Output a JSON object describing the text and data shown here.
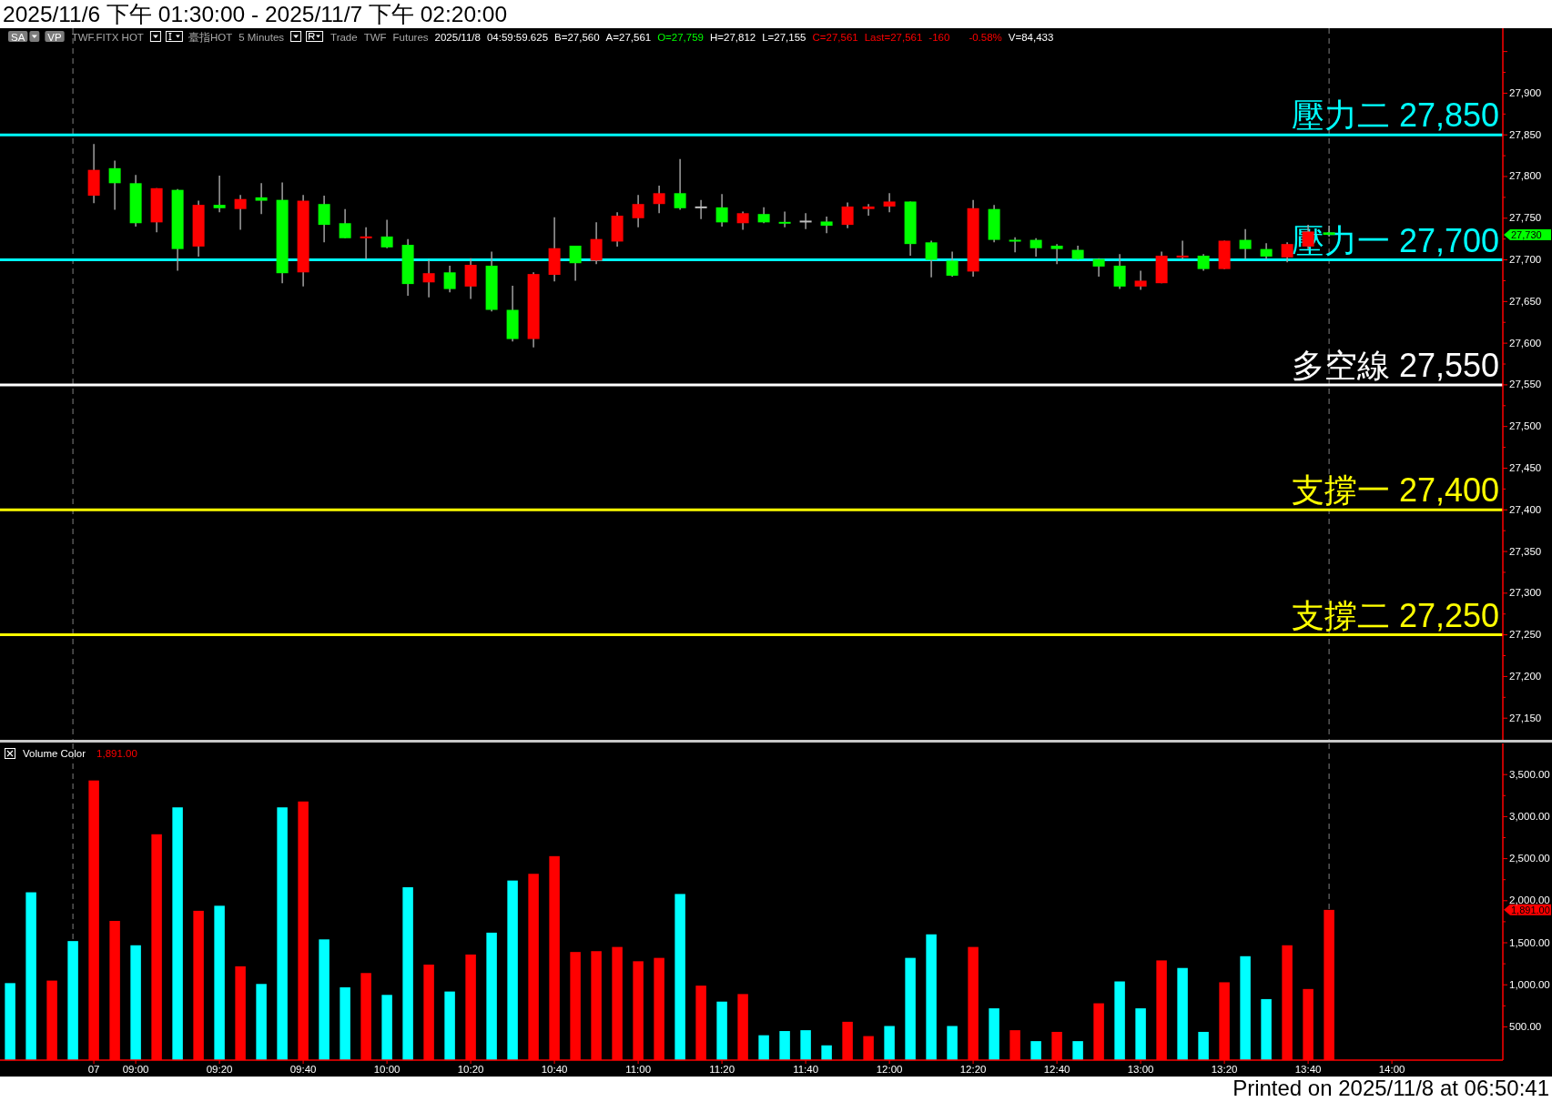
{
  "chart_data": [
    {
      "type": "candlestick",
      "title": "2025/11/6 下午 01:30:00 - 2025/11/7 下午 02:20:00",
      "categories": [
        null,
        null,
        null,
        null,
        null,
        null,
        null,
        null,
        null,
        null,
        null,
        null,
        null,
        null,
        null,
        null,
        null,
        null,
        null,
        null,
        null,
        null,
        null,
        null,
        null,
        null,
        null,
        null,
        null,
        null,
        null,
        null,
        null,
        null,
        null,
        null,
        null,
        null,
        null,
        null,
        null,
        null,
        null,
        null,
        null,
        null,
        null,
        null,
        null,
        null,
        null,
        null,
        null,
        null,
        null,
        null,
        null,
        null,
        null,
        null,
        null,
        null,
        null,
        null,
        null,
        null,
        null,
        null,
        null,
        null,
        null
      ],
      "ohlc": [
        null,
        null,
        null,
        null,
        [
          27777,
          27839,
          27768,
          27808
        ],
        [
          27810,
          27819,
          27760,
          27792
        ],
        [
          27792,
          27802,
          27740,
          27744
        ],
        [
          27745,
          27786,
          27733,
          27786
        ],
        [
          27784,
          27785,
          27687,
          27713
        ],
        [
          27716,
          27771,
          27704,
          27766
        ],
        [
          27766,
          27801,
          27757,
          27762
        ],
        [
          27761,
          27778,
          27736,
          27773
        ],
        [
          27775,
          27792,
          27755,
          27771
        ],
        [
          27772,
          27793,
          27672,
          27684
        ],
        [
          27685,
          27778,
          27668,
          27771
        ],
        [
          27767,
          27777,
          27721,
          27742
        ],
        [
          27744,
          27761,
          27726,
          27726
        ],
        [
          27726,
          27739,
          27701,
          27728
        ],
        [
          27728,
          27748,
          27714,
          27715
        ],
        [
          27718,
          27725,
          27657,
          27671
        ],
        [
          27673,
          27700,
          27655,
          27684
        ],
        [
          27685,
          27693,
          27661,
          27665
        ],
        [
          27668,
          27702,
          27653,
          27694
        ],
        [
          27693,
          27710,
          27638,
          27640
        ],
        [
          27640,
          27669,
          27602,
          27605
        ],
        [
          27605,
          27685,
          27595,
          27683
        ],
        [
          27682,
          27751,
          27674,
          27714
        ],
        [
          27717,
          27717,
          27675,
          27696
        ],
        [
          27699,
          27745,
          27695,
          27725
        ],
        [
          27722,
          27757,
          27716,
          27753
        ],
        [
          27750,
          27778,
          27739,
          27767
        ],
        [
          27767,
          27789,
          27756,
          27780
        ],
        [
          27780,
          27821,
          27760,
          27762
        ],
        [
          27763,
          27772,
          27749,
          27763
        ],
        [
          27763,
          27779,
          27740,
          27745
        ],
        [
          27744,
          27758,
          27736,
          27756
        ],
        [
          27755,
          27763,
          27744,
          27745
        ],
        [
          27745,
          27758,
          27739,
          27744
        ],
        [
          27746,
          27756,
          27737,
          27746
        ],
        [
          27746,
          27752,
          27732,
          27741
        ],
        [
          27742,
          27769,
          27738,
          27764
        ],
        [
          27761,
          27767,
          27753,
          27764
        ],
        [
          27764,
          27780,
          27757,
          27770
        ],
        [
          27770,
          27770,
          27705,
          27719
        ],
        [
          27721,
          27723,
          27679,
          27700
        ],
        [
          27699,
          27710,
          27680,
          27681
        ],
        [
          27686,
          27772,
          27680,
          27762
        ],
        [
          27761,
          27766,
          27721,
          27724
        ],
        [
          27724,
          27727,
          27709,
          27722
        ],
        [
          27724,
          27726,
          27704,
          27714
        ],
        [
          27717,
          27719,
          27695,
          27713
        ],
        [
          27712,
          27717,
          27700,
          27701
        ],
        [
          27701,
          27702,
          27680,
          27692
        ],
        [
          27693,
          27707,
          27665,
          27668
        ],
        [
          27668,
          27687,
          27664,
          27675
        ],
        [
          27672,
          27710,
          27672,
          27705
        ],
        [
          27703,
          27723,
          27701,
          27705
        ],
        [
          27705,
          27707,
          27687,
          27689
        ],
        [
          27689,
          27723,
          27689,
          27723
        ],
        [
          27724,
          27737,
          27701,
          27713
        ],
        [
          27713,
          27720,
          27701,
          27704
        ],
        [
          27703,
          27721,
          27697,
          27719
        ],
        [
          27716,
          27742,
          27713,
          27734
        ],
        [
          27733,
          27741,
          27728,
          27730
        ],
        null,
        null,
        null,
        null,
        null,
        null,
        null
      ],
      "colors": [
        null,
        null,
        null,
        null,
        "#ff0000",
        "#00ff00",
        "#00ff00",
        "#ff0000",
        "#00ff00",
        "#ff0000",
        "#00ff00",
        "#ff0000",
        "#00ff00",
        "#00ff00",
        "#ff0000",
        "#00ff00",
        "#00ff00",
        "#ff0000",
        "#00ff00",
        "#00ff00",
        "#ff0000",
        "#00ff00",
        "#ff0000",
        "#00ff00",
        "#00ff00",
        "#ff0000",
        "#ff0000",
        "#00ff00",
        "#ff0000",
        "#ff0000",
        "#ff0000",
        "#ff0000",
        "#00ff00",
        "#c0c0c0",
        "#00ff00",
        "#ff0000",
        "#00ff00",
        "#00ff00",
        "#c0c0c0",
        "#00ff00",
        "#ff0000",
        "#ff0000",
        "#ff0000",
        "#00ff00",
        "#00ff00",
        "#00ff00",
        "#ff0000",
        "#00ff00",
        "#00ff00",
        "#00ff00",
        "#00ff00",
        "#00ff00",
        "#00ff00",
        "#00ff00",
        "#ff0000",
        "#ff0000",
        "#ff0000",
        "#00ff00",
        "#ff0000",
        "#00ff00",
        "#00ff00",
        "#ff0000",
        "#ff0000",
        "#00ff00",
        null,
        null,
        null,
        null,
        null,
        null,
        null
      ],
      "ylim": [
        27124,
        27978
      ],
      "yticks": [
        {
          "value": 27150,
          "label": "27,150"
        },
        {
          "value": 27200,
          "label": "27,200"
        },
        {
          "value": 27250,
          "label": "27,250"
        },
        {
          "value": 27300,
          "label": "27,300"
        },
        {
          "value": 27350,
          "label": "27,350"
        },
        {
          "value": 27400,
          "label": "27,400"
        },
        {
          "value": 27450,
          "label": "27,450"
        },
        {
          "value": 27500,
          "label": "27,500"
        },
        {
          "value": 27550,
          "label": "27,550"
        },
        {
          "value": 27600,
          "label": "27,600"
        },
        {
          "value": 27650,
          "label": "27,650"
        },
        {
          "value": 27700,
          "label": "27,700"
        },
        {
          "value": 27750,
          "label": "27,750"
        },
        {
          "value": 27800,
          "label": "27,800"
        },
        {
          "value": 27850,
          "label": "27,850"
        },
        {
          "value": 27900,
          "label": "27,900"
        },
        {
          "value": 27950,
          "label": null
        }
      ],
      "ref_lines": [
        {
          "axis": "y",
          "value": 27850,
          "label": "壓力二 27,850",
          "color": "#00ffff"
        },
        {
          "axis": "y",
          "value": 27700,
          "label": "壓力一 27,700",
          "color": "#00ffff"
        },
        {
          "axis": "y",
          "value": 27550,
          "label": "多空線 27,550",
          "color": "#ffffff"
        },
        {
          "axis": "y",
          "value": 27400,
          "label": "支撐一 27,400",
          "color": "#ffff00"
        },
        {
          "axis": "y",
          "value": 27250,
          "label": "支撐二 27,250",
          "color": "#ffff00"
        }
      ],
      "annotations": [
        "SA",
        "VP",
        "TWF.FITX HOT",
        "臺指HOT",
        "5 Minutes",
        "Trade",
        "TWF",
        "Futures",
        "2025/11/8",
        "04:59:59.625",
        "B=27,560",
        "A=27,561",
        "O=27,759",
        "H=27,812",
        "L=27,155",
        "C=27,561",
        "Last=27,561",
        "-160",
        "-0.58%",
        "V=84,433",
        "27,730"
      ]
    },
    {
      "type": "bar",
      "title": "Volume Color",
      "categories": [
        null,
        null,
        null,
        null,
        "07",
        null,
        "09:00",
        null,
        null,
        null,
        "09:20",
        null,
        null,
        null,
        "09:40",
        null,
        null,
        null,
        "10:00",
        null,
        null,
        null,
        "10:20",
        null,
        null,
        null,
        "10:40",
        null,
        null,
        null,
        "11:00",
        null,
        null,
        null,
        "11:20",
        null,
        null,
        null,
        "11:40",
        null,
        null,
        null,
        "12:00",
        null,
        null,
        null,
        "12:20",
        null,
        null,
        null,
        "12:40",
        null,
        null,
        null,
        "13:00",
        null,
        null,
        null,
        "13:20",
        null,
        null,
        null,
        "13:40",
        null,
        null,
        null,
        "14:00",
        null,
        null,
        null,
        null
      ],
      "values": [
        1020,
        2100,
        1050,
        1520,
        3430,
        1760,
        1470,
        2790,
        3110,
        1880,
        1940,
        1220,
        1010,
        3110,
        3180,
        1540,
        970,
        1140,
        880,
        2160,
        1240,
        920,
        1360,
        1620,
        2240,
        2320,
        2530,
        1390,
        1400,
        1450,
        1280,
        1320,
        2080,
        990,
        800,
        890,
        400,
        450,
        460,
        280,
        560,
        390,
        510,
        1320,
        1600,
        510,
        1450,
        720,
        460,
        330,
        440,
        330,
        780,
        1040,
        720,
        1290,
        1200,
        440,
        1030,
        1340,
        830,
        1470,
        950,
        1891,
        null,
        null,
        null,
        null,
        null,
        null,
        null
      ],
      "colors": [
        "#00ffff",
        "#00ffff",
        "#ff0000",
        "#00ffff",
        "#ff0000",
        "#ff0000",
        "#00ffff",
        "#ff0000",
        "#00ffff",
        "#ff0000",
        "#00ffff",
        "#ff0000",
        "#00ffff",
        "#00ffff",
        "#ff0000",
        "#00ffff",
        "#00ffff",
        "#ff0000",
        "#00ffff",
        "#00ffff",
        "#ff0000",
        "#00ffff",
        "#ff0000",
        "#00ffff",
        "#00ffff",
        "#ff0000",
        "#ff0000",
        "#ff0000",
        "#ff0000",
        "#ff0000",
        "#ff0000",
        "#ff0000",
        "#00ffff",
        "#ff0000",
        "#00ffff",
        "#ff0000",
        "#00ffff",
        "#00ffff",
        "#00ffff",
        "#00ffff",
        "#ff0000",
        "#ff0000",
        "#00ffff",
        "#00ffff",
        "#00ffff",
        "#00ffff",
        "#ff0000",
        "#00ffff",
        "#ff0000",
        "#00ffff",
        "#ff0000",
        "#00ffff",
        "#ff0000",
        "#00ffff",
        "#00ffff",
        "#ff0000",
        "#00ffff",
        "#00ffff",
        "#ff0000",
        "#00ffff",
        "#00ffff",
        "#ff0000",
        "#ff0000",
        "#ff0000",
        null,
        null,
        null,
        null,
        null,
        null,
        null
      ],
      "ylim": [
        104,
        3870
      ],
      "yticks": [
        {
          "value": 500,
          "label": "500.00"
        },
        {
          "value": 1000,
          "label": "1,000.00"
        },
        {
          "value": 1500,
          "label": "1,500.00"
        },
        {
          "value": 2000,
          "label": "2,000.00"
        },
        {
          "value": 2500,
          "label": "2,500.00"
        },
        {
          "value": 3000,
          "label": "3,000.00"
        },
        {
          "value": 3500,
          "label": "3,500.00"
        }
      ],
      "annotations": [
        "1,891.00",
        "1,891.00",
        "Printed on 2025/11/8 at 06:50:41"
      ]
    }
  ]
}
